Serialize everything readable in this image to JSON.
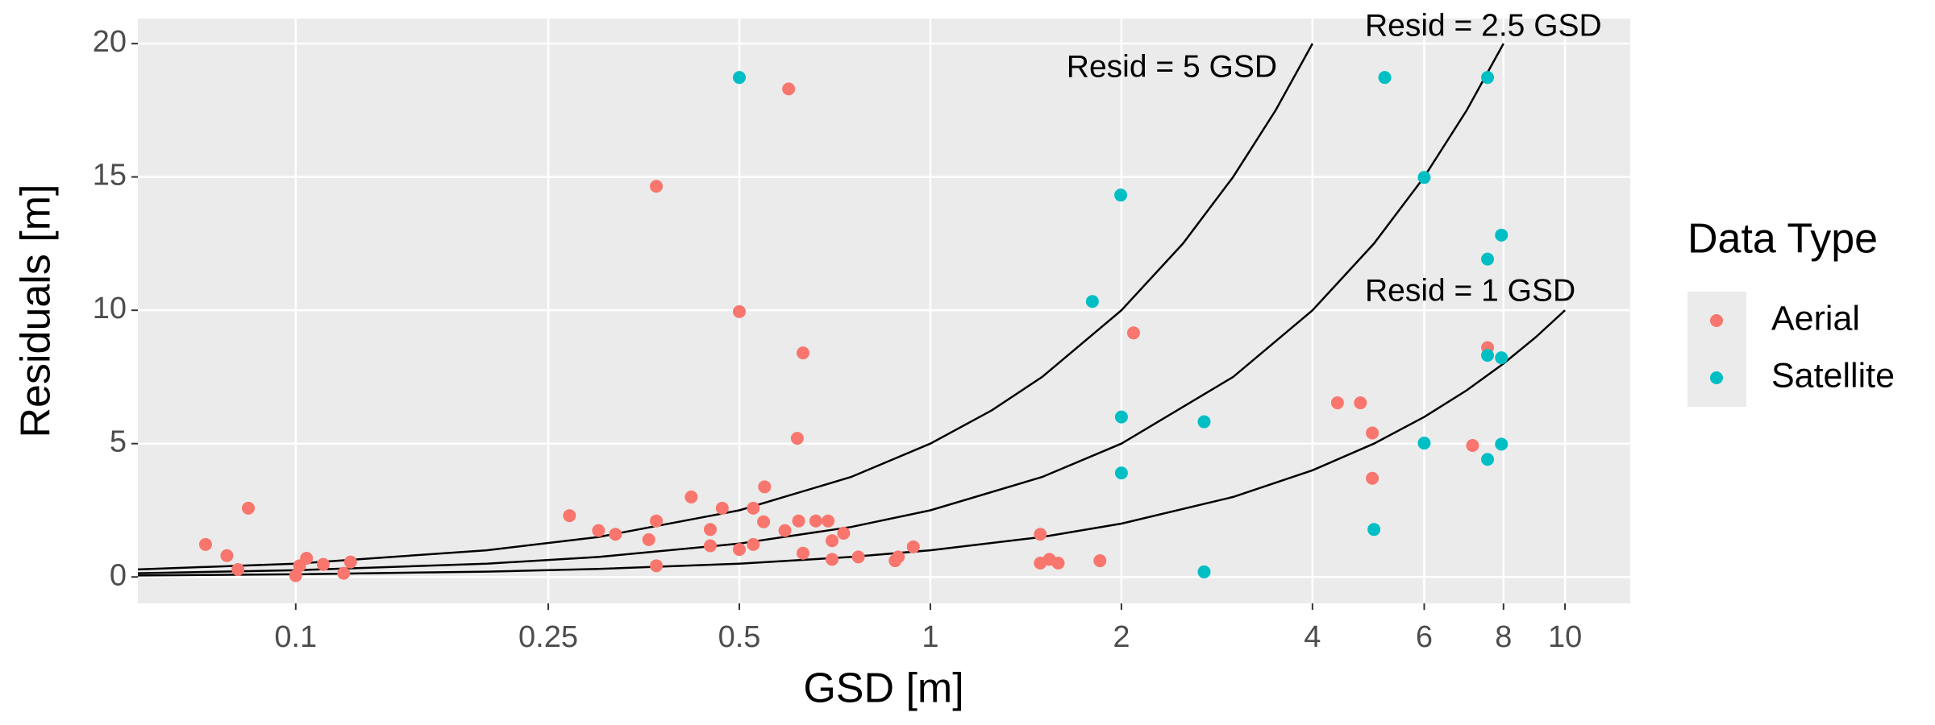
{
  "chart_data": {
    "type": "scatter",
    "x_label": "GSD [m]",
    "y_label": "Residuals [m]",
    "legend_title": "Data Type",
    "x_scale": "log",
    "xlim": [
      0.0564,
      12.67
    ],
    "ylim": [
      -0.99,
      20.94
    ],
    "xticks": [
      0.1,
      0.25,
      0.5,
      1,
      2,
      4,
      6,
      8,
      10
    ],
    "yticks": [
      0,
      5,
      10,
      15,
      20
    ],
    "grid": true,
    "legend_position": "right",
    "series": [
      {
        "name": "Aerial",
        "color": "#F8766D",
        "x": [
          0.0721,
          0.0779,
          0.0811,
          0.0842,
          0.1,
          0.1014,
          0.104,
          0.1105,
          0.119,
          0.122,
          0.27,
          0.3,
          0.319,
          0.36,
          0.37,
          0.37,
          0.37,
          0.42,
          0.45,
          0.45,
          0.47,
          0.5,
          0.5,
          0.526,
          0.526,
          0.546,
          0.548,
          0.59,
          0.598,
          0.617,
          0.62,
          0.63,
          0.63,
          0.66,
          0.69,
          0.7,
          0.7,
          0.73,
          0.77,
          0.88,
          0.89,
          0.94,
          1.49,
          1.49,
          1.54,
          1.59,
          1.85,
          2.09,
          4.38,
          4.76,
          4.97,
          4.97,
          7.15,
          7.55
        ],
        "values": [
          1.22,
          0.8,
          0.28,
          2.58,
          0.05,
          0.42,
          0.7,
          0.47,
          0.14,
          0.56,
          2.3,
          1.74,
          1.6,
          1.4,
          2.1,
          0.42,
          14.65,
          3.0,
          1.78,
          1.17,
          2.58,
          1.03,
          9.95,
          2.58,
          1.22,
          2.07,
          3.38,
          1.74,
          18.3,
          5.2,
          2.1,
          8.4,
          0.89,
          2.1,
          2.1,
          1.36,
          0.66,
          1.64,
          0.75,
          0.61,
          0.75,
          1.13,
          1.6,
          0.52,
          0.66,
          0.52,
          0.61,
          9.15,
          6.53,
          6.53,
          5.4,
          3.7,
          4.93,
          8.6
        ]
      },
      {
        "name": "Satellite",
        "color": "#00BFC4",
        "x": [
          0.5,
          1.8,
          1.995,
          2,
          2,
          2.7,
          2.7,
          5,
          5.2,
          6,
          6,
          7.55,
          7.55,
          7.55,
          7.55,
          7.94,
          7.94,
          7.94
        ],
        "values": [
          18.73,
          10.33,
          14.32,
          6.0,
          3.9,
          5.82,
          0.19,
          1.78,
          18.73,
          14.98,
          5.02,
          18.73,
          11.92,
          8.31,
          4.41,
          12.82,
          8.22,
          4.98
        ]
      }
    ],
    "lines": [
      {
        "label": "Resid = 5 GSD",
        "color": "#000000",
        "x": [
          0.0564,
          0.1,
          0.2,
          0.3,
          0.5,
          0.75,
          1,
          1.25,
          1.5,
          2,
          2.5,
          3,
          3.5,
          4
        ],
        "values": [
          0.282,
          0.5,
          1,
          1.5,
          2.5,
          3.75,
          5,
          6.25,
          7.5,
          10,
          12.5,
          15,
          17.5,
          20
        ]
      },
      {
        "label": "Resid = 2.5 GSD",
        "color": "#000000",
        "x": [
          0.0564,
          0.1,
          0.2,
          0.3,
          0.5,
          0.75,
          1,
          1.5,
          2,
          3,
          4,
          5,
          6,
          7,
          8
        ],
        "values": [
          0.141,
          0.25,
          0.5,
          0.75,
          1.25,
          1.875,
          2.5,
          3.75,
          5,
          7.5,
          10,
          12.5,
          15,
          17.5,
          20
        ]
      },
      {
        "label": "Resid = 1 GSD",
        "color": "#000000",
        "x": [
          0.0564,
          0.1,
          0.2,
          0.3,
          0.5,
          0.75,
          1,
          1.5,
          2,
          3,
          4,
          5,
          6,
          7,
          8,
          9,
          10
        ],
        "values": [
          0.0564,
          0.1,
          0.2,
          0.3,
          0.5,
          0.75,
          1,
          1.5,
          2,
          3,
          4,
          5,
          6,
          7,
          8,
          9,
          10
        ]
      }
    ]
  }
}
